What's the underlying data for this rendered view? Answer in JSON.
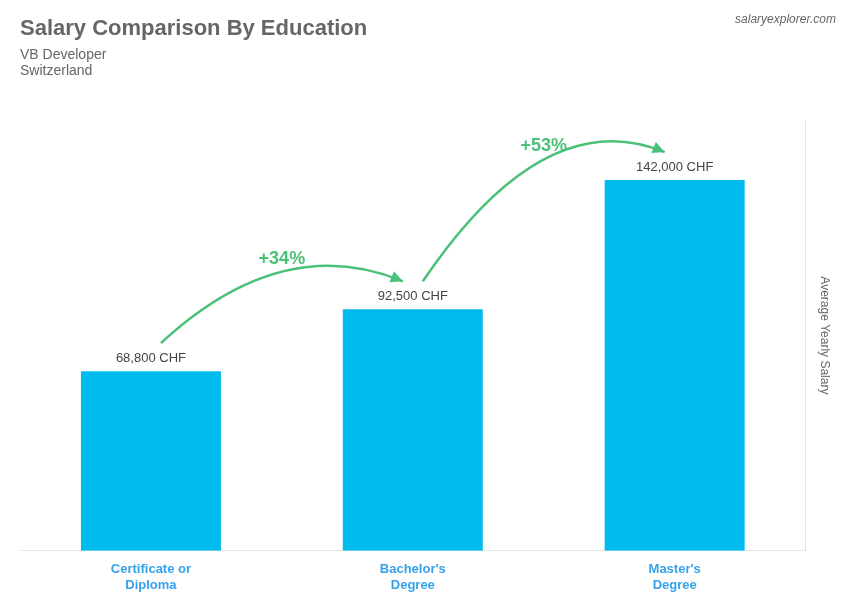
{
  "chart_data": {
    "type": "bar",
    "title": "Salary Comparison By Education",
    "subtitle": [
      "VB Developer",
      "Switzerland"
    ],
    "ylabel": "Average Yearly Salary",
    "categories": [
      "Certificate or\nDiploma",
      "Bachelor's\nDegree",
      "Master's\nDegree"
    ],
    "values": [
      68800,
      92500,
      142000
    ],
    "value_labels": [
      "68,800 CHF",
      "92,500 CHF",
      "142,000 CHF"
    ],
    "data_labels": true,
    "annotations": [
      "+34%",
      "+53%",
      "salaryexplorer.com"
    ],
    "color": "#00bbee",
    "ylim": [
      0,
      165000
    ],
    "tick_labels": "x",
    "grid": false,
    "legend": false
  }
}
